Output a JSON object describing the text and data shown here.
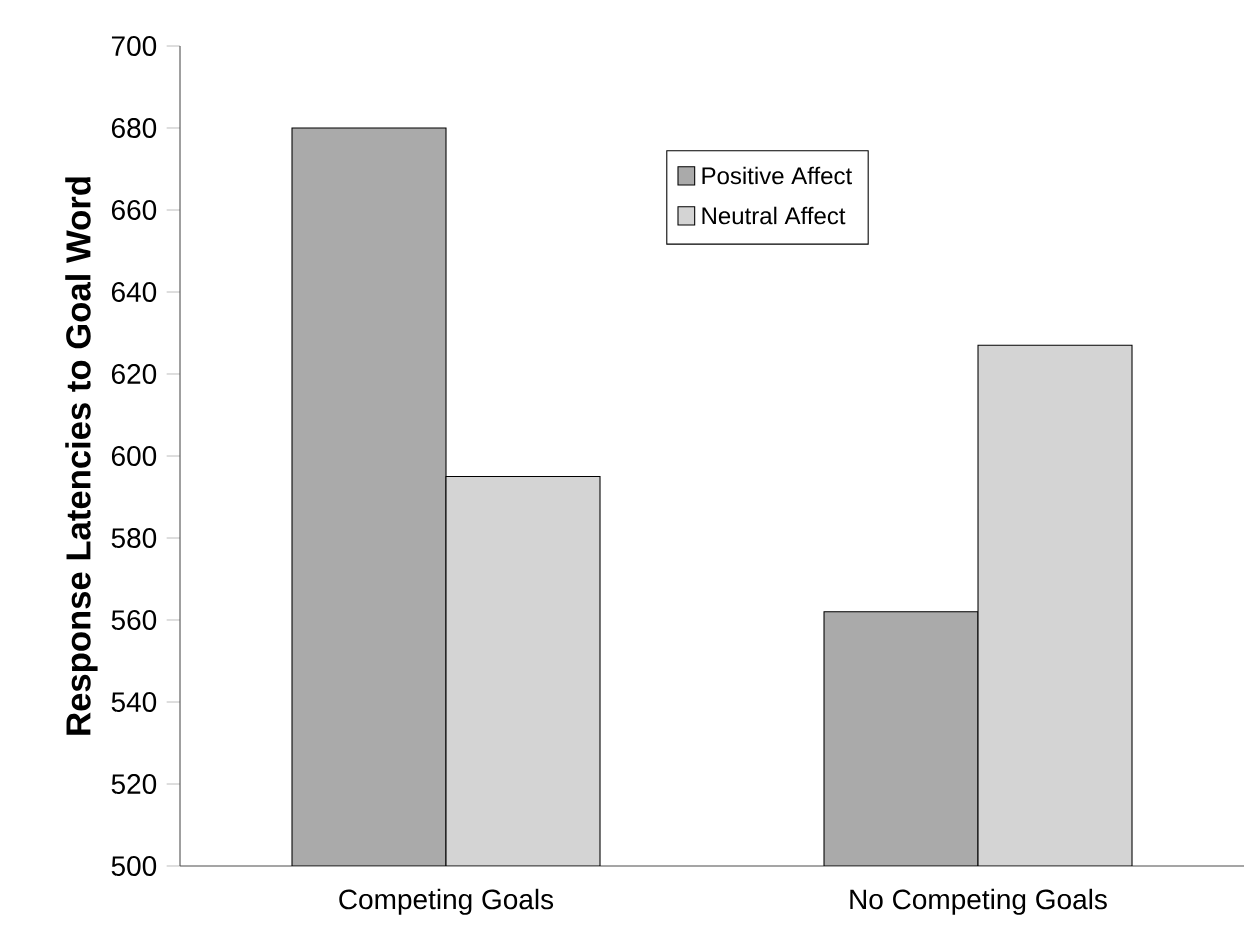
{
  "chart_data": {
    "type": "bar",
    "ylabel": "Response Latencies to Goal Word",
    "categories": [
      "Competing Goals",
      "No Competing Goals"
    ],
    "series": [
      {
        "name": "Positive Affect",
        "color": "#aaaaaa",
        "values": [
          680,
          562
        ]
      },
      {
        "name": "Neutral Affect",
        "color": "#d4d4d4",
        "values": [
          595,
          627
        ]
      }
    ],
    "ylim": [
      500,
      700
    ],
    "yticks": [
      500,
      520,
      540,
      560,
      580,
      600,
      620,
      640,
      660,
      680,
      700
    ],
    "legend": "top right"
  }
}
